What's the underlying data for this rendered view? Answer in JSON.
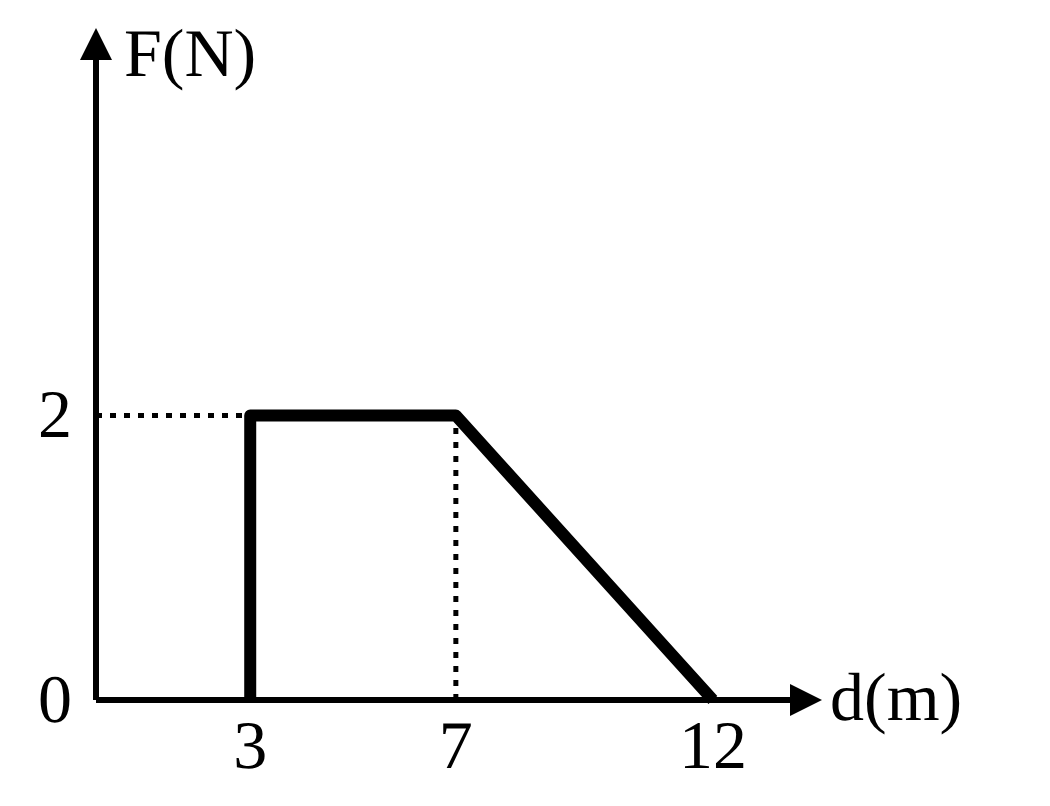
{
  "chart_data": {
    "type": "line",
    "xlabel": "d(m)",
    "ylabel": "F(N)",
    "x": [
      3,
      3,
      7,
      12
    ],
    "series": [
      {
        "color": "#000000",
        "values": [
          0,
          2,
          2,
          0
        ]
      }
    ],
    "xlim": [
      0,
      13.5
    ],
    "ylim": [
      0,
      4.5
    ],
    "xticks": [
      3,
      7,
      12
    ],
    "yticks": [
      0,
      2
    ],
    "grid": false,
    "marker": "none",
    "line_style": "solid",
    "ref_lines": [
      {
        "axis": "y",
        "value": 2,
        "line_style": "dotted",
        "color": "#000000"
      },
      {
        "axis": "x",
        "value": 7,
        "line_style": "dotted",
        "color": "#000000"
      }
    ]
  }
}
